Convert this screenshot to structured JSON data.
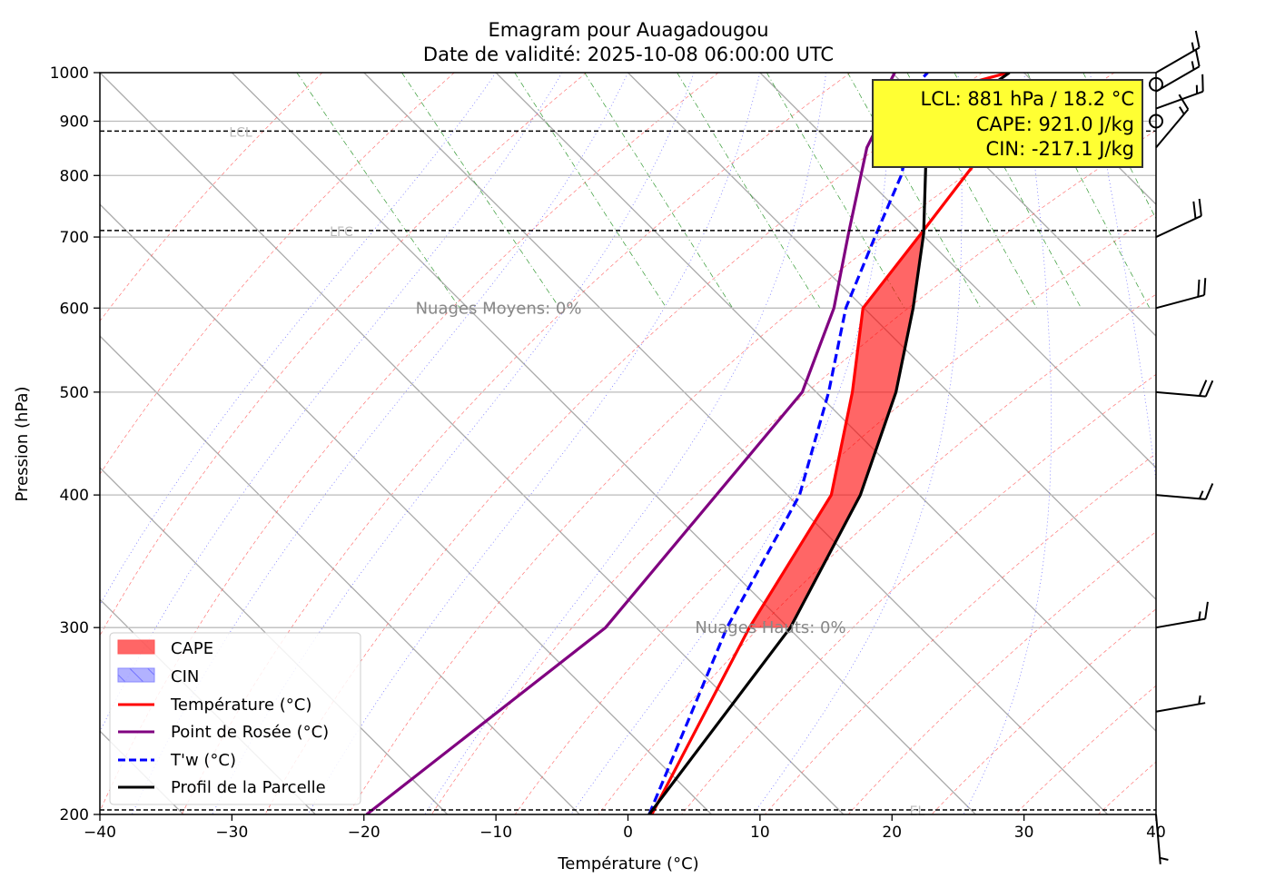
{
  "chart_data": {
    "type": "line",
    "title": "Emagram pour Auagadougou",
    "subtitle": "Date de validité: 2025-10-08 06:00:00 UTC",
    "xlabel": "Température (°C)",
    "ylabel": "Pression (hPa)",
    "xlim": [
      -40,
      40
    ],
    "ylim": [
      1000,
      200
    ],
    "yscale": "log",
    "xticks": [
      -40,
      -30,
      -20,
      -10,
      0,
      10,
      20,
      30,
      40
    ],
    "xtick_labels": [
      "−40",
      "−30",
      "−20",
      "−10",
      "0",
      "10",
      "20",
      "30",
      "40"
    ],
    "yticks": [
      1000,
      900,
      800,
      700,
      600,
      500,
      400,
      300,
      200
    ],
    "ytick_labels": [
      "1000",
      "900",
      "800",
      "700",
      "600",
      "500",
      "400",
      "300",
      "200"
    ],
    "skew": 35,
    "series": [
      {
        "name": "Température (°C)",
        "color": "#ff0000",
        "style": "solid",
        "p": [
          200,
          300,
          400,
          500,
          600,
          705,
          850,
          915,
          954,
          977,
          1000
        ],
        "t": [
          1.8,
          9.2,
          15.4,
          17.0,
          17.8,
          22.2,
          27.2,
          29.0,
          29.4,
          25.8,
          28.8
        ]
      },
      {
        "name": "Point de Rosée (°C)",
        "color": "#800080",
        "style": "solid",
        "p": [
          200,
          300,
          500,
          600,
          705,
          850,
          900,
          950,
          1000
        ],
        "t": [
          -19.8,
          -1.7,
          13.2,
          15.6,
          16.7,
          18.1,
          19.1,
          19.3,
          20.2
        ]
      },
      {
        "name": "T'w (°C)",
        "color": "#0000ff",
        "style": "dashed",
        "p": [
          200,
          300,
          400,
          500,
          600,
          700,
          800,
          850,
          900,
          950,
          965,
          1000
        ],
        "t": [
          1.6,
          7.5,
          13.0,
          15.2,
          16.5,
          18.7,
          20.7,
          21.2,
          22.0,
          22.4,
          21.5,
          22.7
        ]
      },
      {
        "name": "Profil de la Parcelle",
        "color": "#000000",
        "style": "solid",
        "p": [
          200,
          300,
          400,
          500,
          600,
          705,
          850,
          900,
          1000
        ],
        "t": [
          1.6,
          12.3,
          17.6,
          20.3,
          21.6,
          22.4,
          22.6,
          23.7,
          28.9
        ]
      }
    ],
    "areas": [
      {
        "name": "CAPE",
        "color": "#ff0000",
        "p_range": [
          300,
          705
        ]
      },
      {
        "name": "CIN",
        "color": "#0000ff",
        "p_range": [
          850,
          955
        ]
      }
    ],
    "levels": [
      {
        "name": "EL",
        "p": 202
      },
      {
        "name": "LFC",
        "p": 710
      },
      {
        "name": "LCL",
        "p": 881
      }
    ],
    "annotations": [
      {
        "text": "Nuages Hauts: 0%",
        "p": 300,
        "t": 10.8
      },
      {
        "text": "Nuages Moyens: 0%",
        "p": 600,
        "t": -9.8
      }
    ],
    "info_box": [
      "LCL: 881 hPa / 18.2 °C",
      "CAPE: 921.0 J/kg",
      "CIN: -217.1 J/kg"
    ],
    "info_box_color": "#ffff33",
    "wind_barbs": [
      {
        "p": 200,
        "dir": 175,
        "kt": 5
      },
      {
        "p": 250,
        "dir": 80,
        "kt": 5
      },
      {
        "p": 300,
        "dir": 80,
        "kt": 15
      },
      {
        "p": 400,
        "dir": 95,
        "kt": 15
      },
      {
        "p": 500,
        "dir": 95,
        "kt": 20
      },
      {
        "p": 600,
        "dir": 75,
        "kt": 20
      },
      {
        "p": 700,
        "dir": 65,
        "kt": 20
      },
      {
        "p": 850,
        "dir": 40,
        "kt": 15
      },
      {
        "p": 900,
        "dir": 0,
        "kt": 0
      },
      {
        "p": 925,
        "dir": 70,
        "kt": 15
      },
      {
        "p": 960,
        "dir": 60,
        "kt": 15
      },
      {
        "p": 975,
        "dir": 0,
        "kt": 0
      },
      {
        "p": 1000,
        "dir": 60,
        "kt": 15
      }
    ],
    "legend": {
      "placement": "lower-left",
      "entries": [
        "CAPE",
        "CIN",
        "Température (°C)",
        "Point de Rosée (°C)",
        "T'w (°C)",
        "Profil de la Parcelle"
      ]
    }
  }
}
